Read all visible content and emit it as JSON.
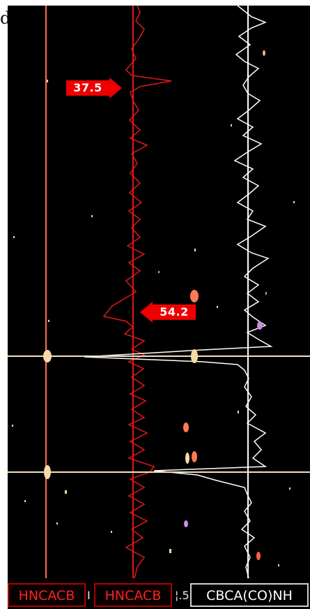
{
  "corner_label": "d",
  "peak_markers": [
    {
      "label": "37.5",
      "direction": "right"
    },
    {
      "label": "54.2",
      "direction": "left"
    }
  ],
  "strip_tabs": [
    {
      "label": "HNCACB",
      "style": "red"
    },
    {
      "label": "HNCACB",
      "style": "red"
    },
    {
      "label": "CBCA(CO)NH",
      "style": "white"
    }
  ],
  "tab_separators": [
    "I",
    "¦.5"
  ],
  "colors": {
    "background": "#000000",
    "crosshair": "#f2e2bc",
    "hncacb_trace": "#e01818",
    "cbcaconh_trace": "#ffffff",
    "marker": "#ee0000",
    "peak_salmon": "#ff7a55",
    "peak_cream": "#f7d9a8",
    "peak_purple": "#c890e0"
  }
}
